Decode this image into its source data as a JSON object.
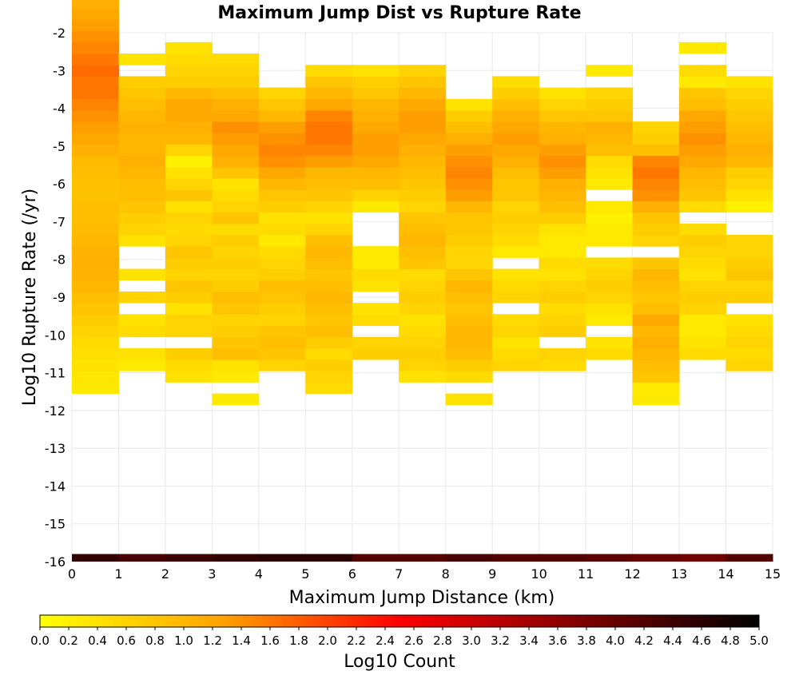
{
  "chart_data": {
    "type": "heatmap",
    "title": "Maximum Jump Dist vs Rupture Rate",
    "xlabel": "Maximum Jump Distance (km)",
    "ylabel": "Log10 Rupture Rate (/yr)",
    "xlim": [
      0,
      15
    ],
    "ylim": [
      -16,
      -2
    ],
    "x_ticks": [
      "0",
      "1",
      "2",
      "3",
      "4",
      "5",
      "6",
      "7",
      "8",
      "9",
      "10",
      "11",
      "12",
      "13",
      "14",
      "15"
    ],
    "y_ticks": [
      "-2",
      "-3",
      "-4",
      "-5",
      "-6",
      "-7",
      "-8",
      "-9",
      "-10",
      "-11",
      "-12",
      "-13",
      "-14",
      "-15",
      "-16"
    ],
    "x_bin_width": 1,
    "y_bin_height": 0.3,
    "grid": true,
    "colorbar": {
      "label": "Log10 Count",
      "min": 0.0,
      "max": 5.0,
      "ticks": [
        "0.0",
        "0.2",
        "0.4",
        "0.6",
        "0.8",
        "1.0",
        "1.2",
        "1.4",
        "1.6",
        "1.8",
        "2.0",
        "2.2",
        "2.4",
        "2.6",
        "2.8",
        "3.0",
        "3.2",
        "3.4",
        "3.6",
        "3.8",
        "4.0",
        "4.2",
        "4.4",
        "4.6",
        "4.8",
        "5.0"
      ],
      "stops": [
        "#ffff00",
        "#ffa500",
        "#ff0000",
        "#800000",
        "#000000"
      ]
    },
    "columns": [
      {
        "x": 0,
        "y_start": -11.55,
        "values": [
          0.3,
          0.35,
          0.4,
          0.45,
          0.5,
          0.6,
          0.7,
          0.8,
          0.9,
          1.0,
          1.05,
          1.1,
          1.05,
          1.0,
          0.95,
          0.9,
          0.9,
          0.85,
          0.85,
          0.9,
          0.95,
          1.1,
          1.2,
          1.3,
          1.4,
          1.5,
          1.6,
          1.6,
          1.7,
          1.6,
          1.5,
          1.4,
          1.3,
          1.2,
          1.1,
          0.9
        ]
      },
      {
        "x": 1,
        "y_start": -11.25,
        "values": [
          null,
          0.3,
          0.4,
          null,
          0.5,
          0.4,
          null,
          0.6,
          null,
          0.4,
          null,
          null,
          0.4,
          0.6,
          0.7,
          0.8,
          0.9,
          0.9,
          1.0,
          1.1,
          1.0,
          1.0,
          1.1,
          1.0,
          0.9,
          0.8,
          0.7,
          null,
          0.4
        ]
      },
      {
        "x": 2,
        "y_start": -11.25,
        "values": [
          0.4,
          0.5,
          0.7,
          null,
          0.6,
          0.6,
          0.4,
          0.7,
          0.8,
          0.6,
          0.7,
          0.8,
          0.6,
          0.5,
          0.6,
          0.4,
          0.8,
          0.6,
          0.4,
          0.2,
          0.6,
          1.0,
          1.1,
          1.2,
          1.2,
          1.0,
          0.7,
          0.6,
          0.5,
          0.4
        ]
      },
      {
        "x": 3,
        "y_start": -11.85,
        "values": [
          0.3,
          null,
          0.3,
          0.4,
          0.9,
          0.8,
          0.7,
          0.6,
          0.8,
          0.9,
          0.7,
          0.6,
          0.7,
          0.6,
          0.7,
          0.5,
          0.8,
          0.6,
          0.5,
          0.4,
          0.8,
          1.1,
          1.2,
          1.3,
          1.4,
          1.2,
          1.1,
          0.9,
          0.7,
          0.6,
          0.5
        ]
      },
      {
        "x": 4,
        "y_start": -10.95,
        "values": [
          0.6,
          0.8,
          0.9,
          0.8,
          0.6,
          0.7,
          0.8,
          0.9,
          0.7,
          0.6,
          0.5,
          0.3,
          0.5,
          0.4,
          0.7,
          0.8,
          1.0,
          1.2,
          1.4,
          1.5,
          1.4,
          1.3,
          1.0,
          0.8,
          0.6
        ]
      },
      {
        "x": 5,
        "y_start": -11.55,
        "values": [
          0.5,
          0.6,
          0.7,
          0.5,
          0.7,
          0.9,
          0.8,
          0.9,
          1.0,
          0.9,
          0.8,
          0.9,
          1.0,
          0.9,
          0.6,
          0.4,
          0.6,
          0.8,
          0.9,
          1.0,
          1.3,
          1.5,
          1.6,
          1.6,
          1.5,
          1.2,
          1.0,
          0.8,
          0.5
        ]
      },
      {
        "x": 6,
        "y_start": -10.65,
        "values": [
          0.7,
          0.6,
          null,
          0.5,
          0.4,
          null,
          0.4,
          0.5,
          0.3,
          0.3,
          null,
          null,
          null,
          0.3,
          0.6,
          0.9,
          1.0,
          1.2,
          1.3,
          1.3,
          1.2,
          1.1,
          1.0,
          0.8,
          0.7,
          0.4
        ]
      },
      {
        "x": 7,
        "y_start": -11.25,
        "values": [
          0.4,
          0.6,
          0.7,
          0.6,
          0.5,
          0.4,
          0.6,
          0.7,
          0.6,
          0.5,
          0.8,
          0.9,
          1.0,
          0.9,
          0.8,
          0.6,
          0.7,
          0.8,
          0.9,
          1.0,
          1.1,
          1.2,
          1.3,
          1.3,
          1.2,
          1.0,
          0.8,
          0.6
        ]
      },
      {
        "x": 8,
        "y_start": -11.85,
        "values": [
          0.4,
          null,
          0.5,
          0.7,
          0.9,
          1.0,
          1.0,
          0.9,
          0.8,
          0.9,
          1.0,
          0.8,
          0.6,
          0.6,
          0.7,
          0.8,
          0.8,
          1.0,
          1.3,
          1.4,
          1.5,
          1.4,
          1.3,
          1.1,
          0.9,
          0.7,
          0.4
        ]
      },
      {
        "x": 9,
        "y_start": -10.95,
        "values": [
          0.6,
          0.5,
          0.4,
          0.6,
          0.5,
          null,
          0.6,
          0.5,
          0.4,
          null,
          0.3,
          0.5,
          0.6,
          0.7,
          0.6,
          0.8,
          0.8,
          0.9,
          1.1,
          1.2,
          1.3,
          1.2,
          1.1,
          0.9,
          0.7,
          0.5
        ]
      },
      {
        "x": 10,
        "y_start": -10.95,
        "values": [
          0.5,
          0.6,
          null,
          0.7,
          0.6,
          0.5,
          0.7,
          0.6,
          0.4,
          0.5,
          0.3,
          0.3,
          0.4,
          0.7,
          0.9,
          1.0,
          1.1,
          1.3,
          1.4,
          1.3,
          1.1,
          1.0,
          0.8,
          0.6,
          0.4
        ]
      },
      {
        "x": 11,
        "y_start": -10.65,
        "values": [
          0.5,
          0.4,
          null,
          0.3,
          0.4,
          0.6,
          0.7,
          0.6,
          0.5,
          null,
          0.3,
          0.3,
          0.2,
          0.3,
          null,
          0.3,
          0.4,
          0.5,
          0.9,
          1.0,
          1.1,
          0.8,
          0.7,
          0.6,
          null,
          0.3
        ]
      },
      {
        "x": 12,
        "y_start": -11.85,
        "values": [
          0.3,
          0.3,
          0.8,
          0.9,
          1.0,
          1.1,
          1.0,
          1.2,
          0.9,
          0.8,
          0.9,
          1.0,
          0.8,
          null,
          0.6,
          0.7,
          0.8,
          1.1,
          1.4,
          1.5,
          1.6,
          1.5,
          0.9,
          0.7,
          0.6
        ]
      },
      {
        "x": 13,
        "y_start": -10.65,
        "values": [
          0.5,
          0.4,
          0.3,
          0.3,
          0.6,
          0.7,
          0.6,
          0.4,
          0.5,
          0.6,
          0.7,
          0.5,
          null,
          0.5,
          0.8,
          0.9,
          1.0,
          1.2,
          1.3,
          1.4,
          1.3,
          1.2,
          0.9,
          0.8,
          0.3,
          0.5,
          null,
          0.3
        ]
      },
      {
        "x": 14,
        "y_start": -10.95,
        "values": [
          0.6,
          0.5,
          0.6,
          0.5,
          0.4,
          null,
          0.7,
          0.6,
          0.8,
          0.7,
          0.6,
          0.6,
          null,
          null,
          0.2,
          0.4,
          0.6,
          0.7,
          1.0,
          1.1,
          1.0,
          0.9,
          0.8,
          0.7,
          0.6,
          0.4
        ]
      }
    ],
    "bottom_row": {
      "y_start": -16.0,
      "height": 0.2,
      "values": [
        4.5,
        4.3,
        4.4,
        4.5,
        4.6,
        4.6,
        4.2,
        4.2,
        4.3,
        4.2,
        4.2,
        4.1,
        4.0,
        3.9,
        4.2
      ]
    }
  }
}
